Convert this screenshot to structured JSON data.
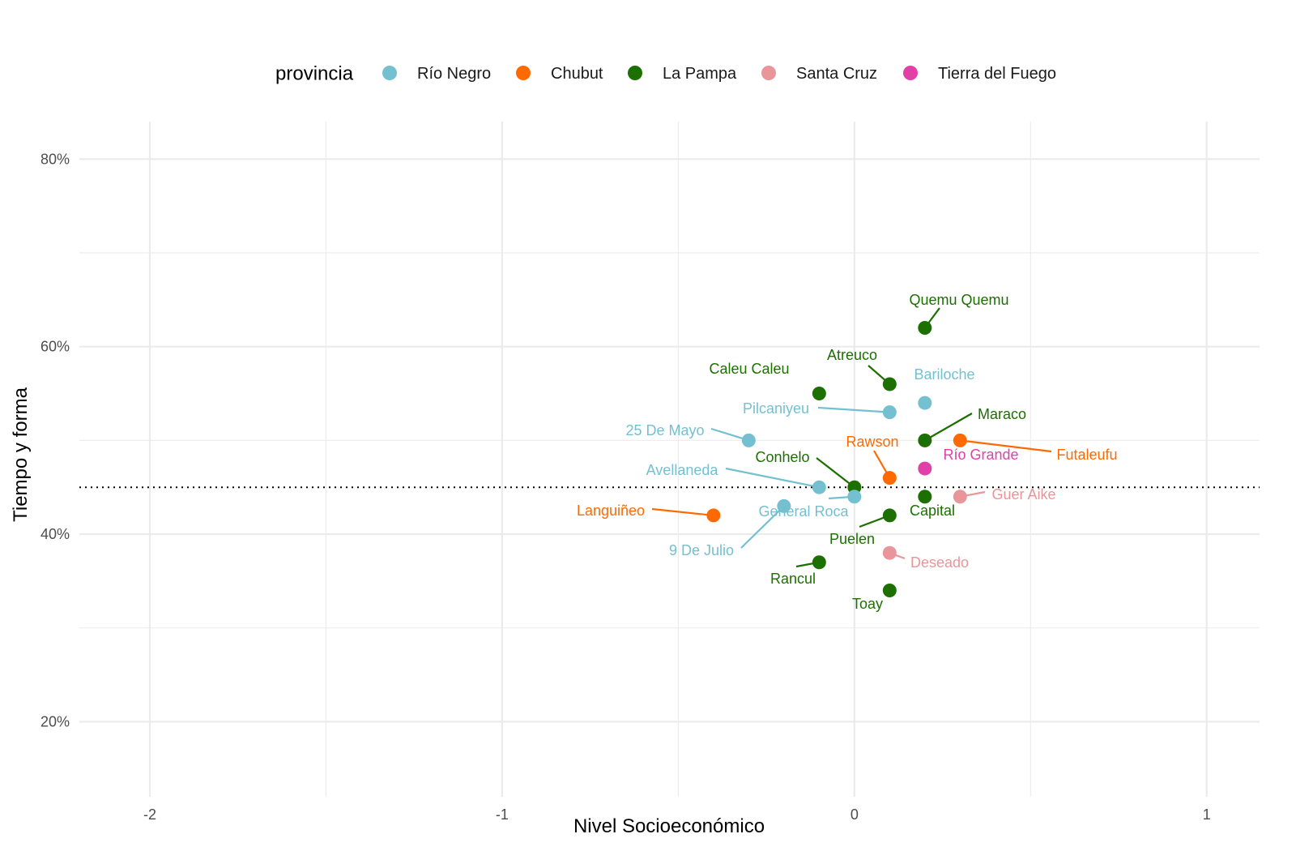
{
  "chart_data": {
    "type": "scatter",
    "xlabel": "Nivel Socioeconómico",
    "ylabel": "Tiempo y forma",
    "xlim": [
      -2.2,
      1.15
    ],
    "ylim": [
      0.12,
      0.84
    ],
    "x_ticks": [
      -2,
      -1,
      0,
      1
    ],
    "x_tick_labels": [
      "-2",
      "-1",
      "0",
      "1"
    ],
    "y_ticks": [
      0.2,
      0.4,
      0.6,
      0.8
    ],
    "y_tick_labels": [
      "20%",
      "40%",
      "60%",
      "80%"
    ],
    "reference_line": {
      "axis": "y",
      "value": 0.45,
      "style": "dotted"
    },
    "grid": true,
    "legend": {
      "title": "provincia",
      "position": "top",
      "entries": [
        {
          "name": "Río Negro",
          "color": "#74C0D0"
        },
        {
          "name": "Chubut",
          "color": "#FF6A00"
        },
        {
          "name": "La Pampa",
          "color": "#1B7000"
        },
        {
          "name": "Santa Cruz",
          "color": "#E8969A"
        },
        {
          "name": "Tierra del Fuego",
          "color": "#E040A8"
        }
      ]
    },
    "points": [
      {
        "label": "Quemu Quemu",
        "x": 0.2,
        "y": 0.62,
        "provincia": "La Pampa"
      },
      {
        "label": "Atreuco",
        "x": 0.1,
        "y": 0.56,
        "provincia": "La Pampa"
      },
      {
        "label": "Caleu Caleu",
        "x": -0.1,
        "y": 0.55,
        "provincia": "La Pampa"
      },
      {
        "label": "Bariloche",
        "x": 0.2,
        "y": 0.54,
        "provincia": "Río Negro"
      },
      {
        "label": "Pilcaniyeu",
        "x": 0.1,
        "y": 0.53,
        "provincia": "Río Negro"
      },
      {
        "label": "25 De Mayo",
        "x": -0.3,
        "y": 0.5,
        "provincia": "Río Negro"
      },
      {
        "label": "Maraco",
        "x": 0.2,
        "y": 0.5,
        "provincia": "La Pampa"
      },
      {
        "label": "Futaleufu",
        "x": 0.3,
        "y": 0.5,
        "provincia": "Chubut"
      },
      {
        "label": "Río Grande",
        "x": 0.2,
        "y": 0.47,
        "provincia": "Tierra del Fuego"
      },
      {
        "label": "Rawson",
        "x": 0.1,
        "y": 0.46,
        "provincia": "Chubut"
      },
      {
        "label": "Conhelo",
        "x": 0.0,
        "y": 0.45,
        "provincia": "La Pampa"
      },
      {
        "label": "Avellaneda",
        "x": -0.1,
        "y": 0.45,
        "provincia": "Río Negro"
      },
      {
        "label": "General Roca",
        "x": 0.0,
        "y": 0.44,
        "provincia": "Río Negro"
      },
      {
        "label": "Guer Aike",
        "x": 0.3,
        "y": 0.44,
        "provincia": "Santa Cruz"
      },
      {
        "label": "Capital",
        "x": 0.2,
        "y": 0.44,
        "provincia": "La Pampa"
      },
      {
        "label": "9 De Julio",
        "x": -0.2,
        "y": 0.43,
        "provincia": "Río Negro"
      },
      {
        "label": "Languiñeo",
        "x": -0.4,
        "y": 0.42,
        "provincia": "Chubut"
      },
      {
        "label": "Puelen",
        "x": 0.1,
        "y": 0.42,
        "provincia": "La Pampa"
      },
      {
        "label": "Deseado",
        "x": 0.1,
        "y": 0.38,
        "provincia": "Santa Cruz"
      },
      {
        "label": "Rancul",
        "x": -0.1,
        "y": 0.37,
        "provincia": "La Pampa"
      },
      {
        "label": "Toay",
        "x": 0.1,
        "y": 0.34,
        "provincia": "La Pampa"
      }
    ]
  }
}
